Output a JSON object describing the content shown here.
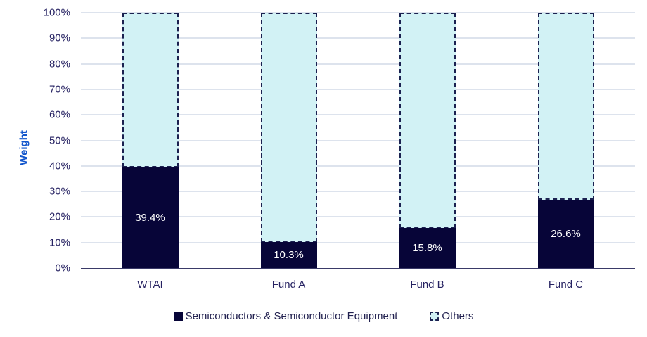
{
  "chart_data": {
    "type": "bar",
    "stacked": true,
    "orientation": "vertical",
    "categories": [
      "WTAI",
      "Fund A",
      "Fund B",
      "Fund C"
    ],
    "series": [
      {
        "name": "Semiconductors & Semiconductor Equipment",
        "values": [
          39.4,
          10.3,
          15.8,
          26.6
        ],
        "data_labels": [
          "39.4%",
          "10.3%",
          "15.8%",
          "26.6%"
        ],
        "color": "#070538",
        "fill_style": "solid"
      },
      {
        "name": "Others",
        "values": [
          60.6,
          89.7,
          84.2,
          73.4
        ],
        "data_labels": [
          "",
          "",
          "",
          ""
        ],
        "color": "#d2f2f5",
        "fill_style": "dashed-outline",
        "border_color": "#1b2150"
      }
    ],
    "title": "",
    "xlabel": "",
    "ylabel": "Weight",
    "ylim": [
      0,
      100
    ],
    "ytick_step": 10,
    "ytick_labels": [
      "0%",
      "10%",
      "20%",
      "30%",
      "40%",
      "50%",
      "60%",
      "70%",
      "80%",
      "90%",
      "100%"
    ],
    "grid": true,
    "legend_position": "bottom"
  },
  "colors": {
    "bar_navy": "#070538",
    "bar_cyan": "#d2f2f5",
    "dashed_border": "#1b2150",
    "gridline": "#dde3ed",
    "axis_line": "#3a3a68",
    "tick_text": "#262262",
    "ylabel_text": "#1155cc",
    "value_label_text": "#ffffff",
    "background": "#ffffff"
  }
}
